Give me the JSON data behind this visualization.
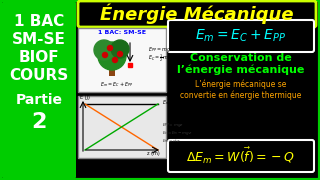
{
  "bg_color": "#000000",
  "left_panel_color": "#00cc00",
  "left_text_lines": [
    "1 BAC",
    "SM-SE",
    "BIOF",
    "COURS",
    "Partie",
    "2"
  ],
  "left_text_color": "#ffffff",
  "title_text": "Énergie Mécanique",
  "title_bg": "#000000",
  "title_border": "#ccff00",
  "title_color": "#ffff00",
  "formula1_text": "$E_m = E_C + E_{PP}$",
  "formula1_color": "#00ffff",
  "formula1_border": "#ffffff",
  "formula1_bg": "#000000",
  "conservation_title": "Conservation de\nl’énergie mécanique",
  "conservation_color": "#00ff00",
  "note_text": "L’énergie mécanique se\nconvertie en énergie thermique",
  "note_color": "#ffa500",
  "formula2_text": "$\\Delta E_m = W(\\vec{f}) = -Q$",
  "formula2_color": "#ffff00",
  "formula2_border": "#ffffff",
  "formula2_bg": "#000000",
  "mid_panel_bg": "#ffffff",
  "mid_label": "1 BAC: SM-SE",
  "mid_label_color": "#0000ff",
  "graph_bg": "#d0d0d0",
  "outer_border_color": "#00cc00"
}
